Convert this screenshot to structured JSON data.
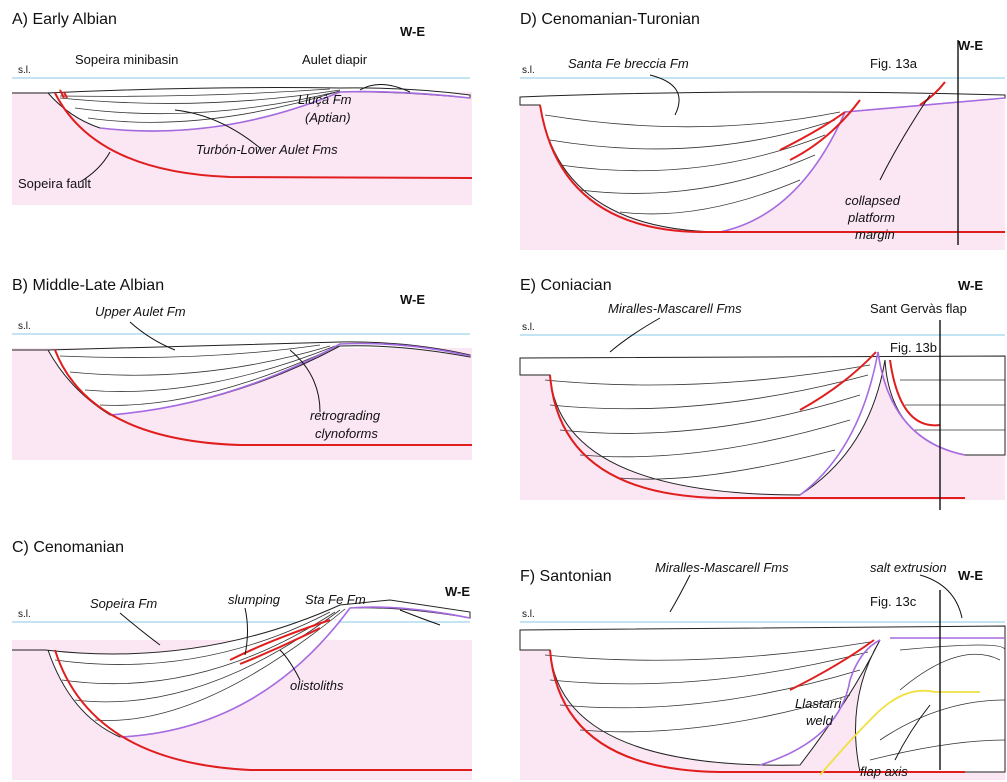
{
  "panels": [
    {
      "title": "A) Early Albian",
      "orientation": "W-E",
      "sea_level": "s.l.",
      "labels": [
        "Sopeira minibasin",
        "Aulet diapir",
        "Lluçà Fm",
        "(Aptian)",
        "Turbón-Lower Aulet Fms",
        "Sopeira fault"
      ]
    },
    {
      "title": "B) Middle-Late Albian",
      "orientation": "W-E",
      "sea_level": "s.l.",
      "labels": [
        "Upper Aulet Fm",
        "retrograding",
        "clynoforms"
      ]
    },
    {
      "title": "C) Cenomanian",
      "orientation": "W-E",
      "sea_level": "s.l.",
      "labels": [
        "Sopeira Fm",
        "slumping",
        "Sta Fe Fm",
        "olistoliths"
      ]
    },
    {
      "title": "D) Cenomanian-Turonian",
      "orientation": "W-E",
      "sea_level": "s.l.",
      "labels": [
        "Santa Fe breccia Fm",
        "Fig. 13a",
        "collapsed",
        "platform",
        "margin"
      ]
    },
    {
      "title": "E) Coniacian",
      "orientation": "W-E",
      "sea_level": "s.l.",
      "labels": [
        "Miralles-Mascarell Fms",
        "Sant Gervàs flap",
        "Fig. 13b"
      ]
    },
    {
      "title": "F) Santonian",
      "orientation": "W-E",
      "sea_level": "s.l.",
      "labels": [
        "Miralles-Mascarell Fms",
        "salt extrusion",
        "Fig. 13c",
        "Llastarri",
        "weld",
        "flap axis"
      ]
    }
  ]
}
